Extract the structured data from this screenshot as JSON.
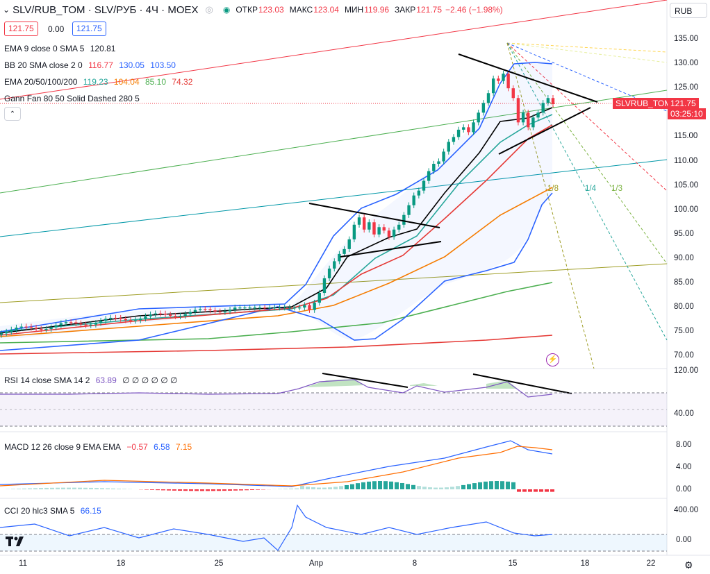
{
  "header": {
    "symbol": "SLV/RUB_TOM · SLV/РУБ · 4Ч · MOEX",
    "open_label": "ОТКР",
    "open": "123.03",
    "high_label": "МАКС",
    "high": "123.04",
    "low_label": "МИН",
    "low": "119.96",
    "close_label": "ЗАКР",
    "close": "121.75",
    "change": "−2.46 (−1.98%)",
    "bid": "121.75",
    "spread": "0.00",
    "ask": "121.75"
  },
  "currency": "RUB",
  "indicators": {
    "ema9": {
      "label": "EMA 9 close 0 SMA 5",
      "value": "120.81"
    },
    "bb": {
      "label": "BB 20 SMA close 2 0",
      "v1": "116.77",
      "v2": "130.05",
      "v3": "103.50"
    },
    "ema_multi": {
      "label": "EMA 20/50/100/200",
      "v1": "119.23",
      "v2": "104.04",
      "v3": "85.10",
      "v4": "74.32"
    },
    "gann": {
      "label": "Gann Fan 80 50 Solid Dashed 280 5"
    },
    "gann_labels": [
      "1/8",
      "1/4",
      "1/3"
    ],
    "rsi": {
      "label": "RSI 14 close SMA 14 2",
      "value": "63.89",
      "zeros": "∅ ∅ ∅ ∅ ∅ ∅"
    },
    "macd": {
      "label": "MACD 12 26 close 9 EMA EMA",
      "v1": "−0.57",
      "v2": "6.58",
      "v3": "7.15"
    },
    "cci": {
      "label": "CCI 20 hlc3 SMA 5",
      "value": "66.15"
    }
  },
  "price_tag": {
    "ticker": "SLVRUB_TOM",
    "price": "121.75",
    "countdown": "03:25:10"
  },
  "price_axis": [
    "135.00",
    "130.00",
    "125.00",
    "120.00",
    "115.00",
    "110.00",
    "105.00",
    "100.00",
    "95.00",
    "90.00",
    "85.00",
    "80.00",
    "75.00",
    "70.00"
  ],
  "rsi_axis": [
    "120.00",
    "40.00"
  ],
  "macd_axis": [
    "8.00",
    "4.00",
    "0.00"
  ],
  "cci_axis": [
    "400.00",
    "0.00"
  ],
  "time_axis": [
    "11",
    "18",
    "25",
    "Апр",
    "8",
    "15",
    "18",
    "22"
  ],
  "colors": {
    "up": "#089981",
    "down": "#f23645",
    "ema9": "#000000",
    "bb": "#2962ff",
    "ema20": "#26a69a",
    "ema50": "#f57c00",
    "ema100": "#4caf50",
    "ema200": "#e53935",
    "rsi": "#7e57c2",
    "macd": "#2962ff",
    "signal": "#ff6d00"
  },
  "icons": {
    "logo": "tradingview-logo-icon",
    "settings": "gear-icon",
    "lightning": "lightning-icon",
    "eye": "eye-icon"
  }
}
